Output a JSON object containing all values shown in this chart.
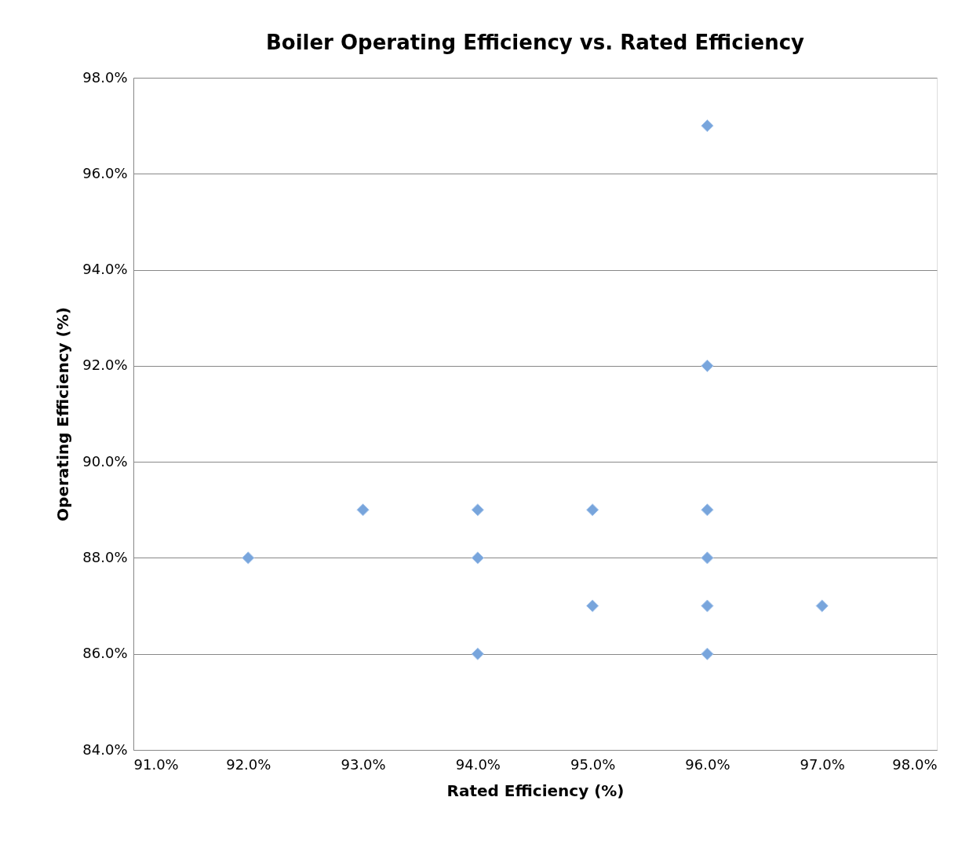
{
  "chart_data": {
    "type": "scatter",
    "title": "Boiler Operating Efficiency vs. Rated Efficiency",
    "xlabel": "Rated Efficiency (%)",
    "ylabel": "Operating Efficiency (%)",
    "x": [
      92,
      93,
      94,
      94,
      94,
      95,
      95,
      96,
      96,
      96,
      96,
      96,
      96,
      97
    ],
    "series": [
      {
        "color": "#78a5dc",
        "values": [
          88,
          89,
          89,
          88,
          86,
          89,
          87,
          97,
          92,
          89,
          88,
          87,
          86,
          87
        ]
      }
    ],
    "xlim": [
      91,
      98
    ],
    "ylim": [
      84,
      98
    ],
    "xticks": [
      {
        "value": 91,
        "label": "91.0%"
      },
      {
        "value": 92,
        "label": "92.0%"
      },
      {
        "value": 93,
        "label": "93.0%"
      },
      {
        "value": 94,
        "label": "94.0%"
      },
      {
        "value": 95,
        "label": "95.0%"
      },
      {
        "value": 96,
        "label": "96.0%"
      },
      {
        "value": 97,
        "label": "97.0%"
      },
      {
        "value": 98,
        "label": "98.0%"
      }
    ],
    "yticks": [
      {
        "value": 84,
        "label": "84.0%"
      },
      {
        "value": 86,
        "label": "86.0%"
      },
      {
        "value": 88,
        "label": "88.0%"
      },
      {
        "value": 90,
        "label": "90.0%"
      },
      {
        "value": 92,
        "label": "92.0%"
      },
      {
        "value": 94,
        "label": "94.0%"
      },
      {
        "value": 96,
        "label": "96.0%"
      },
      {
        "value": 98,
        "label": "98.0%"
      }
    ],
    "grid": "y",
    "marker": "diamond"
  }
}
